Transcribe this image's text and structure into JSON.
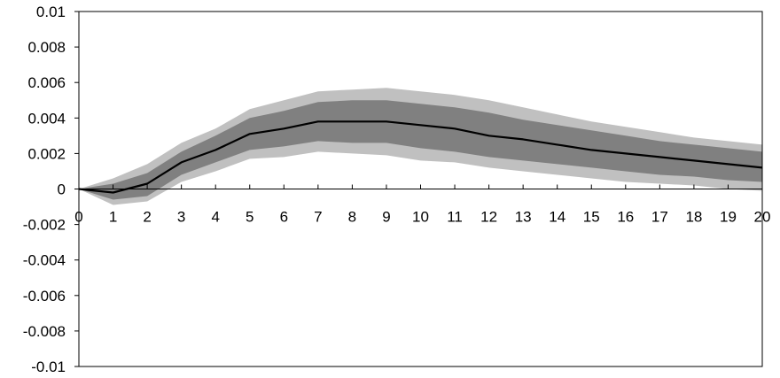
{
  "chart_data": {
    "type": "area",
    "title": "",
    "xlabel": "",
    "ylabel": "",
    "x": [
      0,
      1,
      2,
      3,
      4,
      5,
      6,
      7,
      8,
      9,
      10,
      11,
      12,
      13,
      14,
      15,
      16,
      17,
      18,
      19,
      20
    ],
    "xlim": [
      0,
      20
    ],
    "ylim": [
      -0.01,
      0.01
    ],
    "y_ticks": [
      0.01,
      0.008,
      0.006,
      0.004,
      0.002,
      0,
      -0.002,
      -0.004,
      -0.006,
      -0.008,
      -0.01
    ],
    "y_tick_labels": [
      "0.01",
      "0.008",
      "0.006",
      "0.004",
      "0.002",
      "0",
      "-0.002",
      "-0.004",
      "-0.006",
      "-0.008",
      "-0.01"
    ],
    "x_tick_labels": [
      "0",
      "1",
      "2",
      "3",
      "4",
      "5",
      "6",
      "7",
      "8",
      "9",
      "10",
      "11",
      "12",
      "13",
      "14",
      "15",
      "16",
      "17",
      "18",
      "19",
      "20"
    ],
    "grid": false,
    "legend": "none",
    "series": [
      {
        "role": "outer-band",
        "color": "#c0c0c0",
        "upper": [
          0,
          0.0006,
          0.0014,
          0.0026,
          0.0034,
          0.0045,
          0.005,
          0.0055,
          0.0056,
          0.0057,
          0.0055,
          0.0053,
          0.005,
          0.0046,
          0.0042,
          0.0038,
          0.0035,
          0.0032,
          0.0029,
          0.0027,
          0.0025
        ],
        "lower": [
          0,
          -0.0009,
          -0.0007,
          0.0004,
          0.001,
          0.0017,
          0.0018,
          0.0021,
          0.002,
          0.0019,
          0.0016,
          0.0015,
          0.0012,
          0.001,
          0.0008,
          0.0006,
          0.0004,
          0.0003,
          0.0002,
          0.0,
          -0.0001
        ]
      },
      {
        "role": "inner-band",
        "color": "#808080",
        "upper": [
          0,
          0.0003,
          0.0009,
          0.0021,
          0.003,
          0.004,
          0.0044,
          0.0049,
          0.005,
          0.005,
          0.0048,
          0.0046,
          0.0043,
          0.0039,
          0.0036,
          0.0033,
          0.003,
          0.0027,
          0.0025,
          0.0023,
          0.0021
        ],
        "lower": [
          0,
          -0.0006,
          -0.0004,
          0.0008,
          0.0015,
          0.0022,
          0.0024,
          0.0027,
          0.0026,
          0.0026,
          0.0023,
          0.0021,
          0.0018,
          0.0016,
          0.0014,
          0.0012,
          0.001,
          0.0008,
          0.0007,
          0.0005,
          0.0004
        ]
      },
      {
        "role": "line",
        "color": "#000000",
        "values": [
          0,
          -0.0002,
          0.0003,
          0.0015,
          0.0022,
          0.0031,
          0.0034,
          0.0038,
          0.0038,
          0.0038,
          0.0036,
          0.0034,
          0.003,
          0.0028,
          0.0025,
          0.0022,
          0.002,
          0.0018,
          0.0016,
          0.0014,
          0.0012
        ]
      }
    ]
  }
}
